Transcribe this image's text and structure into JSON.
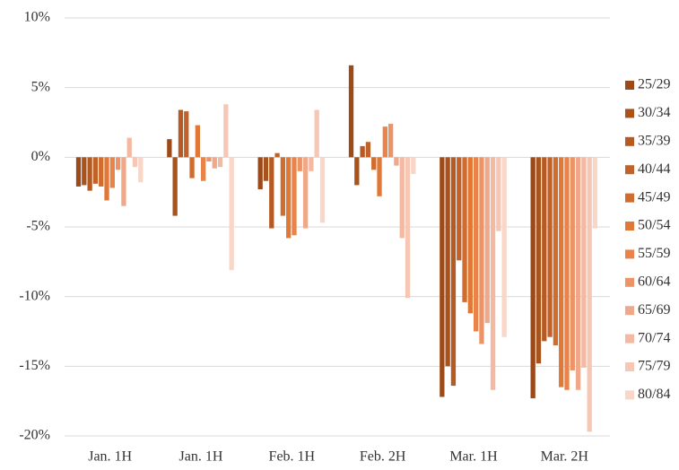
{
  "chart_data": {
    "type": "bar",
    "categories": [
      "Jan. 1H",
      "Jan. 1H",
      "Feb. 1H",
      "Feb. 2H",
      "Mar. 1H",
      "Mar. 2H"
    ],
    "series": [
      {
        "name": "25/29",
        "color": "#9c4a1a",
        "values": [
          -2.1,
          1.3,
          -2.3,
          6.6,
          -17.2,
          -17.3
        ]
      },
      {
        "name": "30/34",
        "color": "#a8521c",
        "values": [
          -2.0,
          -4.2,
          -1.7,
          -2.0,
          -15.0,
          -14.8
        ]
      },
      {
        "name": "35/39",
        "color": "#b45a22",
        "values": [
          -2.4,
          3.4,
          -5.1,
          0.8,
          -16.4,
          -13.2
        ]
      },
      {
        "name": "40/44",
        "color": "#c0622a",
        "values": [
          -1.9,
          3.3,
          0.3,
          1.1,
          -7.4,
          -12.9
        ]
      },
      {
        "name": "45/49",
        "color": "#d06c2e",
        "values": [
          -2.1,
          -1.5,
          -4.2,
          -0.9,
          -10.4,
          -13.5
        ]
      },
      {
        "name": "50/54",
        "color": "#e07838",
        "values": [
          -3.1,
          2.3,
          -5.8,
          -2.8,
          -11.2,
          -16.5
        ]
      },
      {
        "name": "55/59",
        "color": "#e8844a",
        "values": [
          -2.2,
          -1.7,
          -5.6,
          2.2,
          -12.5,
          -16.7
        ]
      },
      {
        "name": "60/64",
        "color": "#ec9468",
        "values": [
          -0.9,
          -0.3,
          -1.0,
          2.4,
          -13.4,
          -15.3
        ]
      },
      {
        "name": "65/69",
        "color": "#f0a88a",
        "values": [
          -3.5,
          -0.8,
          -5.1,
          -0.6,
          -11.9,
          -16.7
        ]
      },
      {
        "name": "70/74",
        "color": "#f4b9a2",
        "values": [
          1.4,
          -0.7,
          -1.0,
          -5.8,
          -16.7,
          -15.1
        ]
      },
      {
        "name": "75/79",
        "color": "#f6c7b4",
        "values": [
          -0.7,
          3.8,
          3.4,
          -10.1,
          -5.3,
          -19.7
        ]
      },
      {
        "name": "80/84",
        "color": "#f8d6c8",
        "values": [
          -1.8,
          -8.1,
          -4.7,
          -1.2,
          -12.9,
          -5.1
        ]
      }
    ],
    "ylim": [
      -20,
      10
    ],
    "yticks": [
      {
        "value": -20,
        "label": "-20%"
      },
      {
        "value": -15,
        "label": "-15%"
      },
      {
        "value": -10,
        "label": "-10%"
      },
      {
        "value": -5,
        "label": "-5%"
      },
      {
        "value": 0,
        "label": "0%"
      },
      {
        "value": 5,
        "label": "5%"
      },
      {
        "value": 10,
        "label": "10%"
      }
    ],
    "grid": true,
    "legend": "right"
  }
}
